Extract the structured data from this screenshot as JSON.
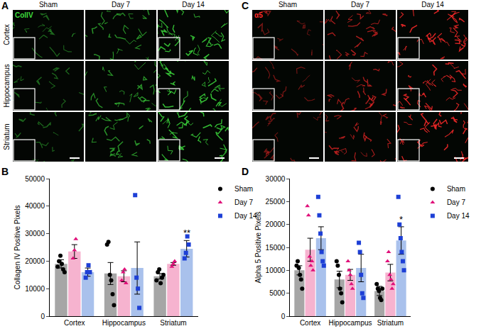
{
  "image_panels": [
    {
      "panel": "A",
      "stain": "ColIV",
      "columns": [
        "Sham",
        "Day 7",
        "Day 14"
      ],
      "rows": [
        "Cortex",
        "Hippocampus",
        "Striatum"
      ]
    },
    {
      "panel": "C",
      "stain": "α5",
      "columns": [
        "Sham",
        "Day 7",
        "Day 14"
      ],
      "rows": [
        null,
        null,
        null
      ]
    }
  ],
  "chart_data": [
    {
      "panel": "B",
      "type": "bar",
      "categories": [
        "Cortex",
        "Hippocampus",
        "Striatum"
      ],
      "y_label": "Collagen IV Positive Pixels",
      "ylim": [
        0,
        50000
      ],
      "yticks": [
        0,
        10000,
        20000,
        30000,
        40000,
        50000
      ],
      "legend": "top right",
      "series": [
        {
          "name": "Sham",
          "color": "#a6a6a6",
          "marker": "circle",
          "values": [
            19000,
            15500,
            14500
          ],
          "errors": [
            1500,
            4000,
            1000
          ],
          "points": [
            [
              18000,
              20000,
              22000,
              19000,
              17000,
              16000
            ],
            [
              26000,
              27000,
              15000,
              13000,
              8000,
              4000
            ],
            [
              13000,
              16000,
              17000,
              12000,
              14000,
              15000
            ]
          ]
        },
        {
          "name": "Day 7",
          "color": "#f6b3cf",
          "marker": "triangle",
          "values": [
            23500,
            14500,
            19000
          ],
          "errors": [
            2500,
            2000,
            500
          ],
          "points": [
            [
              21000,
              24000,
              28000
            ],
            [
              13000,
              16000,
              17000,
              12000
            ],
            [
              18000,
              19000,
              20000
            ]
          ]
        },
        {
          "name": "Day 14",
          "color": "#a9c1ec",
          "marker": "square",
          "values": [
            16000,
            17500,
            24500
          ],
          "errors": [
            1500,
            9500,
            3000
          ],
          "points": [
            [
              14000,
              16000,
              18500,
              16000
            ],
            [
              44000,
              14000,
              10000,
              3000
            ],
            [
              21000,
              23000,
              29000,
              26000
            ]
          ]
        }
      ],
      "annotations": [
        {
          "text": "**",
          "category": "Striatum",
          "series": "Day 14"
        }
      ]
    },
    {
      "panel": "D",
      "type": "bar",
      "categories": [
        "Cortex",
        "Hippocampus",
        "Striatum"
      ],
      "y_label": "Alpha 5 Positive Pixels",
      "ylim": [
        0,
        30000
      ],
      "yticks": [
        0,
        5000,
        10000,
        15000,
        20000,
        25000,
        30000
      ],
      "legend": "top right",
      "series": [
        {
          "name": "Sham",
          "color": "#a6a6a6",
          "marker": "circle",
          "values": [
            10000,
            8000,
            5500
          ],
          "errors": [
            1000,
            1800,
            1000
          ],
          "points": [
            [
              11000,
              12000,
              10500,
              9000,
              8000,
              6000
            ],
            [
              12000,
              11000,
              9000,
              6000,
              5000,
              3000
            ],
            [
              7000,
              6000,
              5500,
              4000,
              3500,
              6000
            ]
          ]
        },
        {
          "name": "Day 7",
          "color": "#f6b3cf",
          "marker": "triangle",
          "values": [
            14500,
            9000,
            9500
          ],
          "errors": [
            2500,
            1200,
            1800
          ],
          "points": [
            [
              24000,
              22000,
              13000,
              11000,
              12000,
              10000
            ],
            [
              12000,
              10000,
              9000,
              7000,
              6000
            ],
            [
              12000,
              14000,
              9000,
              8000,
              6000,
              7000
            ]
          ]
        },
        {
          "name": "Day 14",
          "color": "#a9c1ec",
          "marker": "square",
          "values": [
            17000,
            10500,
            16500
          ],
          "errors": [
            2500,
            3000,
            3000
          ],
          "points": [
            [
              26000,
              22000,
              18000,
              14000,
              12000,
              11000
            ],
            [
              16000,
              14000,
              9000,
              5000,
              4000
            ],
            [
              26000,
              20000,
              17000,
              14000,
              12000,
              10000
            ]
          ]
        }
      ],
      "annotations": [
        {
          "text": "*",
          "category": "Striatum",
          "series": "Day 14"
        }
      ]
    }
  ]
}
